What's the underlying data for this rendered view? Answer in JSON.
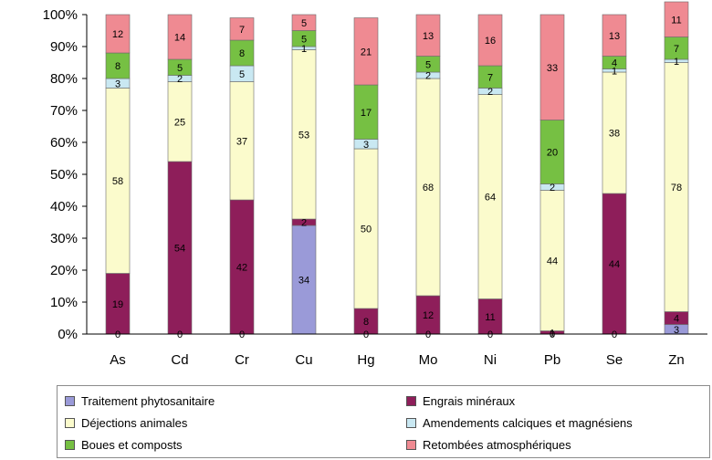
{
  "chart_data": {
    "type": "bar",
    "stacked": true,
    "percent": true,
    "categories": [
      "As",
      "Cd",
      "Cr",
      "Cu",
      "Hg",
      "Mo",
      "Ni",
      "Pb",
      "Se",
      "Zn"
    ],
    "ylim": [
      0,
      100
    ],
    "yticks": [
      "0%",
      "10%",
      "20%",
      "30%",
      "40%",
      "50%",
      "60%",
      "70%",
      "80%",
      "90%",
      "100%"
    ],
    "grid": false,
    "legend_position": "bottom",
    "series": [
      {
        "name": "Traitement phytosanitaire",
        "color": "#9a9ad8",
        "values": [
          0,
          0,
          0,
          34,
          0,
          0,
          0,
          0,
          0,
          3
        ]
      },
      {
        "name": "Engrais minéraux",
        "color": "#8e1e5a",
        "values": [
          19,
          54,
          42,
          2,
          8,
          12,
          11,
          1,
          44,
          4
        ]
      },
      {
        "name": "Déjections animales",
        "color": "#fbfbcc",
        "values": [
          58,
          25,
          37,
          53,
          50,
          68,
          64,
          44,
          38,
          78
        ]
      },
      {
        "name": "Amendements calciques et magnésiens",
        "color": "#c9e8f2",
        "values": [
          3,
          2,
          5,
          1,
          3,
          2,
          2,
          2,
          1,
          1
        ]
      },
      {
        "name": "Boues et composts",
        "color": "#76c043",
        "values": [
          8,
          5,
          8,
          5,
          17,
          5,
          7,
          20,
          4,
          7
        ]
      },
      {
        "name": "Retombées atmosphériques",
        "color": "#ef8a92",
        "values": [
          12,
          14,
          7,
          5,
          21,
          13,
          16,
          33,
          13,
          11
        ]
      }
    ],
    "data_labels": [
      [
        "0",
        "0",
        "0",
        "34",
        "0",
        "0",
        "0",
        "0",
        "0",
        "3"
      ],
      [
        "19",
        "54",
        "42",
        "2",
        "8",
        "12",
        "11",
        "1",
        "44",
        "4"
      ],
      [
        "58",
        "25",
        "37",
        "53",
        "50",
        "68",
        "64",
        "44",
        "38",
        "78"
      ],
      [
        "3",
        "2",
        "5",
        "1",
        "3",
        "2",
        "2",
        "2",
        "1",
        "1"
      ],
      [
        "8",
        "5",
        "8",
        "5",
        "17",
        "5",
        "7",
        "20",
        "4",
        "7"
      ],
      [
        "12",
        "14",
        "7",
        "5",
        "21",
        "13",
        "16",
        "33",
        "13",
        "11"
      ]
    ]
  }
}
